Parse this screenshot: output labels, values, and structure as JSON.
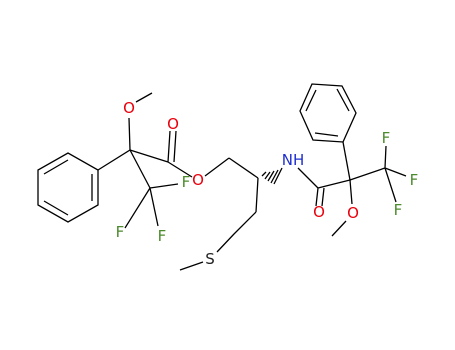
{
  "atoms": [
    {
      "label": "O"
    },
    {
      "label": "O"
    },
    {
      "label": "O"
    },
    {
      "label": "F"
    },
    {
      "label": "F"
    },
    {
      "label": "F"
    },
    {
      "label": "S"
    },
    {
      "label": "NH"
    },
    {
      "label": "O"
    },
    {
      "label": "O"
    },
    {
      "label": "F"
    },
    {
      "label": "F"
    },
    {
      "label": "F"
    }
  ]
}
